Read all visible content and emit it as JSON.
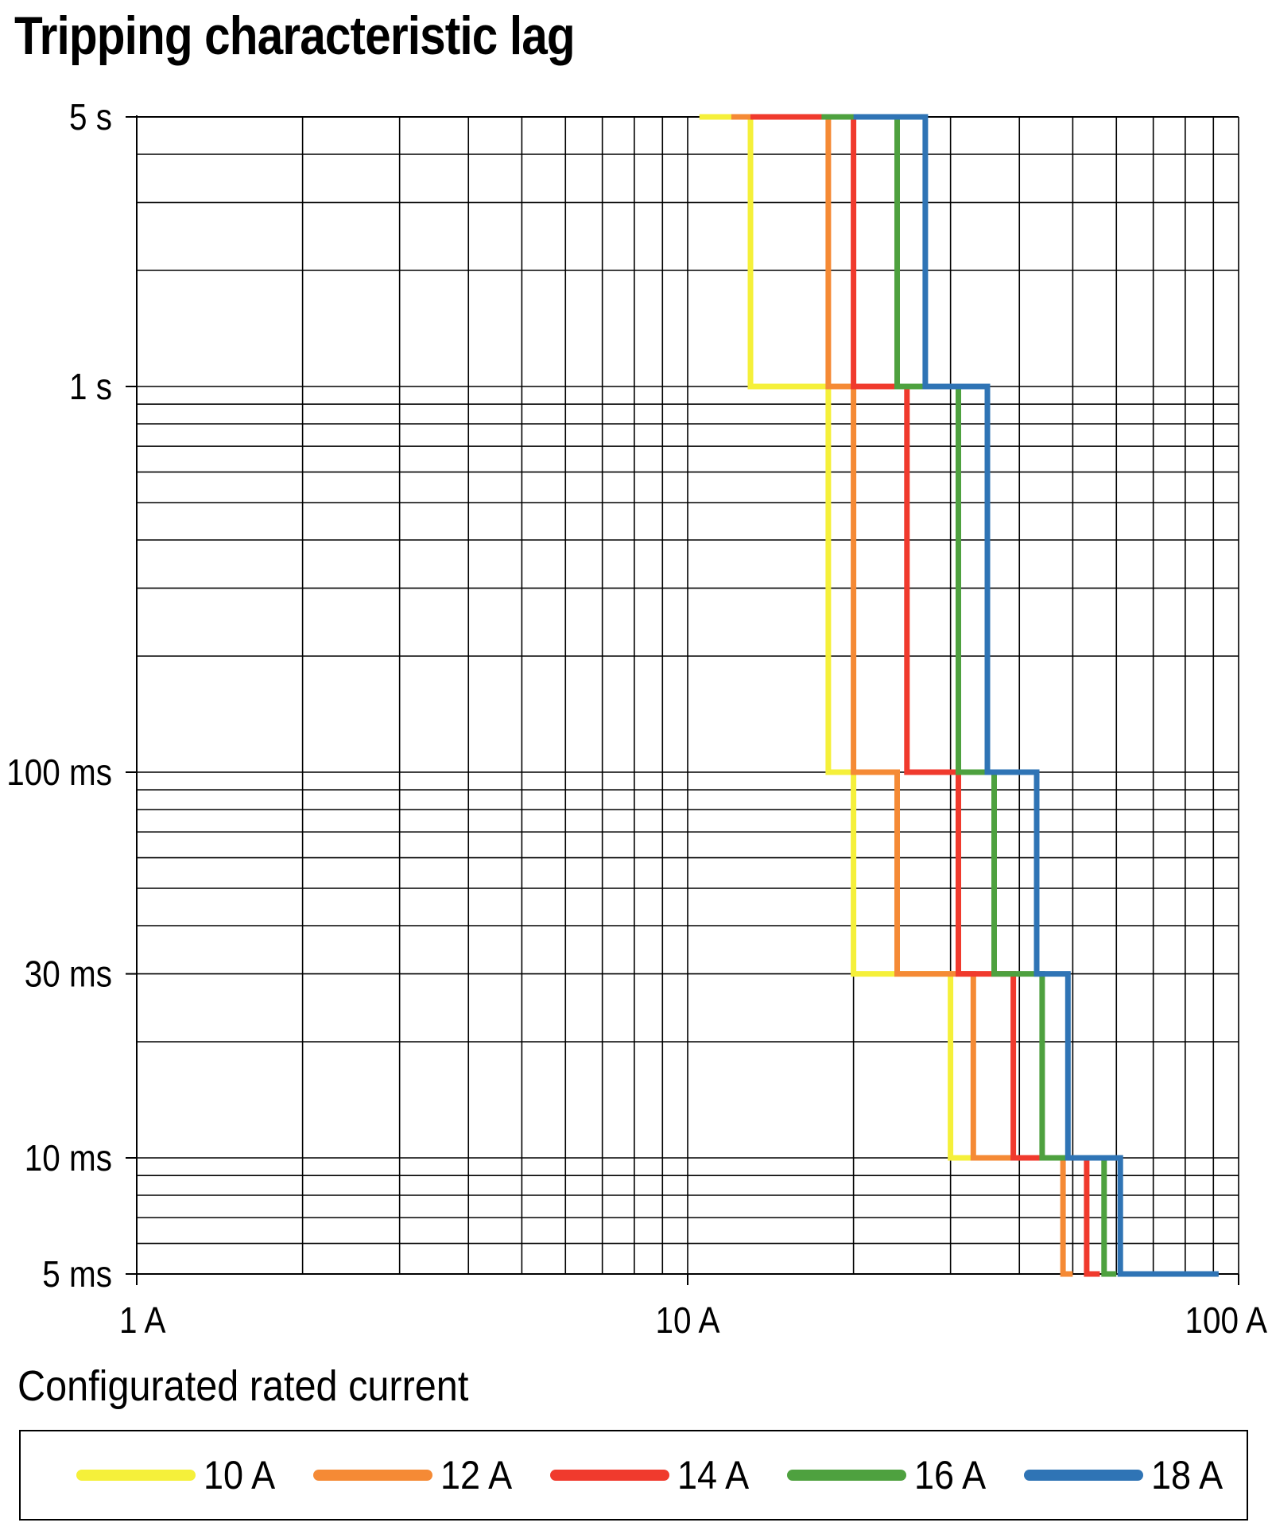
{
  "title": "Tripping characteristic lag",
  "chart_data": {
    "type": "line",
    "title": "Tripping characteristic lag",
    "xlabel": "",
    "ylabel": "",
    "x_scale": "log",
    "y_scale": "log",
    "xlim": [
      1,
      100
    ],
    "ylim": [
      0.005,
      5
    ],
    "x_ticks": [
      {
        "value": 1,
        "label": "1 A"
      },
      {
        "value": 10,
        "label": "10 A"
      },
      {
        "value": 100,
        "label": "100 A"
      }
    ],
    "y_ticks": [
      {
        "value": 5,
        "label": "5 s"
      },
      {
        "value": 1,
        "label": "1 s"
      },
      {
        "value": 0.1,
        "label": "100 ms"
      },
      {
        "value": 0.03,
        "label": "30 ms"
      },
      {
        "value": 0.01,
        "label": "10 ms"
      },
      {
        "value": 0.005,
        "label": "5 ms"
      }
    ],
    "grid": true,
    "legend_title": "Configurated rated current",
    "legend_position": "bottom",
    "series": [
      {
        "name": "10 A",
        "color": "#f5f03a",
        "x": [
          10.5,
          13,
          13,
          18,
          18,
          20,
          20,
          30,
          30,
          48
        ],
        "y": [
          5,
          5,
          1,
          1,
          0.1,
          0.1,
          0.03,
          0.03,
          0.01,
          0.01
        ]
      },
      {
        "name": "12 A",
        "color": "#f58a35",
        "x": [
          12,
          18,
          18,
          20,
          20,
          24,
          24,
          33,
          33,
          48,
          48,
          50
        ],
        "y": [
          5,
          5,
          1,
          1,
          0.1,
          0.1,
          0.03,
          0.03,
          0.01,
          0.01,
          0.005,
          0.005
        ]
      },
      {
        "name": "14 A",
        "color": "#f03a2d",
        "x": [
          13,
          20,
          20,
          25,
          25,
          31,
          31,
          39,
          39,
          53,
          53,
          56
        ],
        "y": [
          5,
          5,
          1,
          1,
          0.1,
          0.1,
          0.03,
          0.03,
          0.01,
          0.01,
          0.005,
          0.005
        ]
      },
      {
        "name": "16 A",
        "color": "#4ea13f",
        "x": [
          17.5,
          24,
          24,
          31,
          31,
          36,
          36,
          44,
          44,
          57,
          57,
          60
        ],
        "y": [
          5,
          5,
          1,
          1,
          0.1,
          0.1,
          0.03,
          0.03,
          0.01,
          0.01,
          0.005,
          0.005
        ]
      },
      {
        "name": "18 A",
        "color": "#2f74b5",
        "x": [
          20,
          27,
          27,
          35,
          35,
          43,
          43,
          49,
          49,
          61,
          61,
          92
        ],
        "y": [
          5,
          5,
          1,
          1,
          0.1,
          0.1,
          0.03,
          0.03,
          0.01,
          0.01,
          0.005,
          0.005
        ]
      }
    ]
  }
}
